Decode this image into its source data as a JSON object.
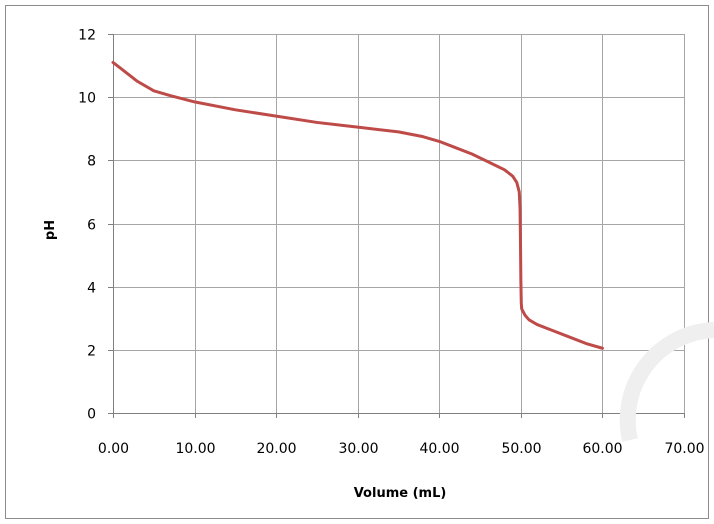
{
  "chart_data": {
    "type": "line",
    "title": "",
    "xlabel": "Volume (mL)",
    "ylabel": "pH",
    "xlim": [
      0,
      70
    ],
    "ylim": [
      0,
      12
    ],
    "xticks": [
      "0.00",
      "10.00",
      "20.00",
      "30.00",
      "40.00",
      "50.00",
      "60.00",
      "70.00"
    ],
    "yticks": [
      "0",
      "2",
      "4",
      "6",
      "8",
      "10",
      "12"
    ],
    "grid": true,
    "legend": "none",
    "series": [
      {
        "color": "#be4b48",
        "x": [
          0,
          1,
          2,
          3,
          5,
          7,
          10,
          15,
          20,
          25,
          30,
          35,
          38,
          40,
          42,
          44,
          46,
          48,
          49,
          49.5,
          49.8,
          49.9,
          49.95,
          50,
          50.05,
          50.1,
          50.5,
          51,
          52,
          54,
          56,
          58,
          60
        ],
        "y": [
          11.1,
          10.9,
          10.7,
          10.5,
          10.2,
          10.05,
          9.85,
          9.6,
          9.4,
          9.2,
          9.05,
          8.9,
          8.75,
          8.6,
          8.4,
          8.2,
          7.95,
          7.7,
          7.5,
          7.3,
          7.0,
          6.5,
          5.5,
          4.2,
          3.5,
          3.3,
          3.1,
          2.95,
          2.8,
          2.6,
          2.4,
          2.2,
          2.05
        ]
      }
    ]
  }
}
